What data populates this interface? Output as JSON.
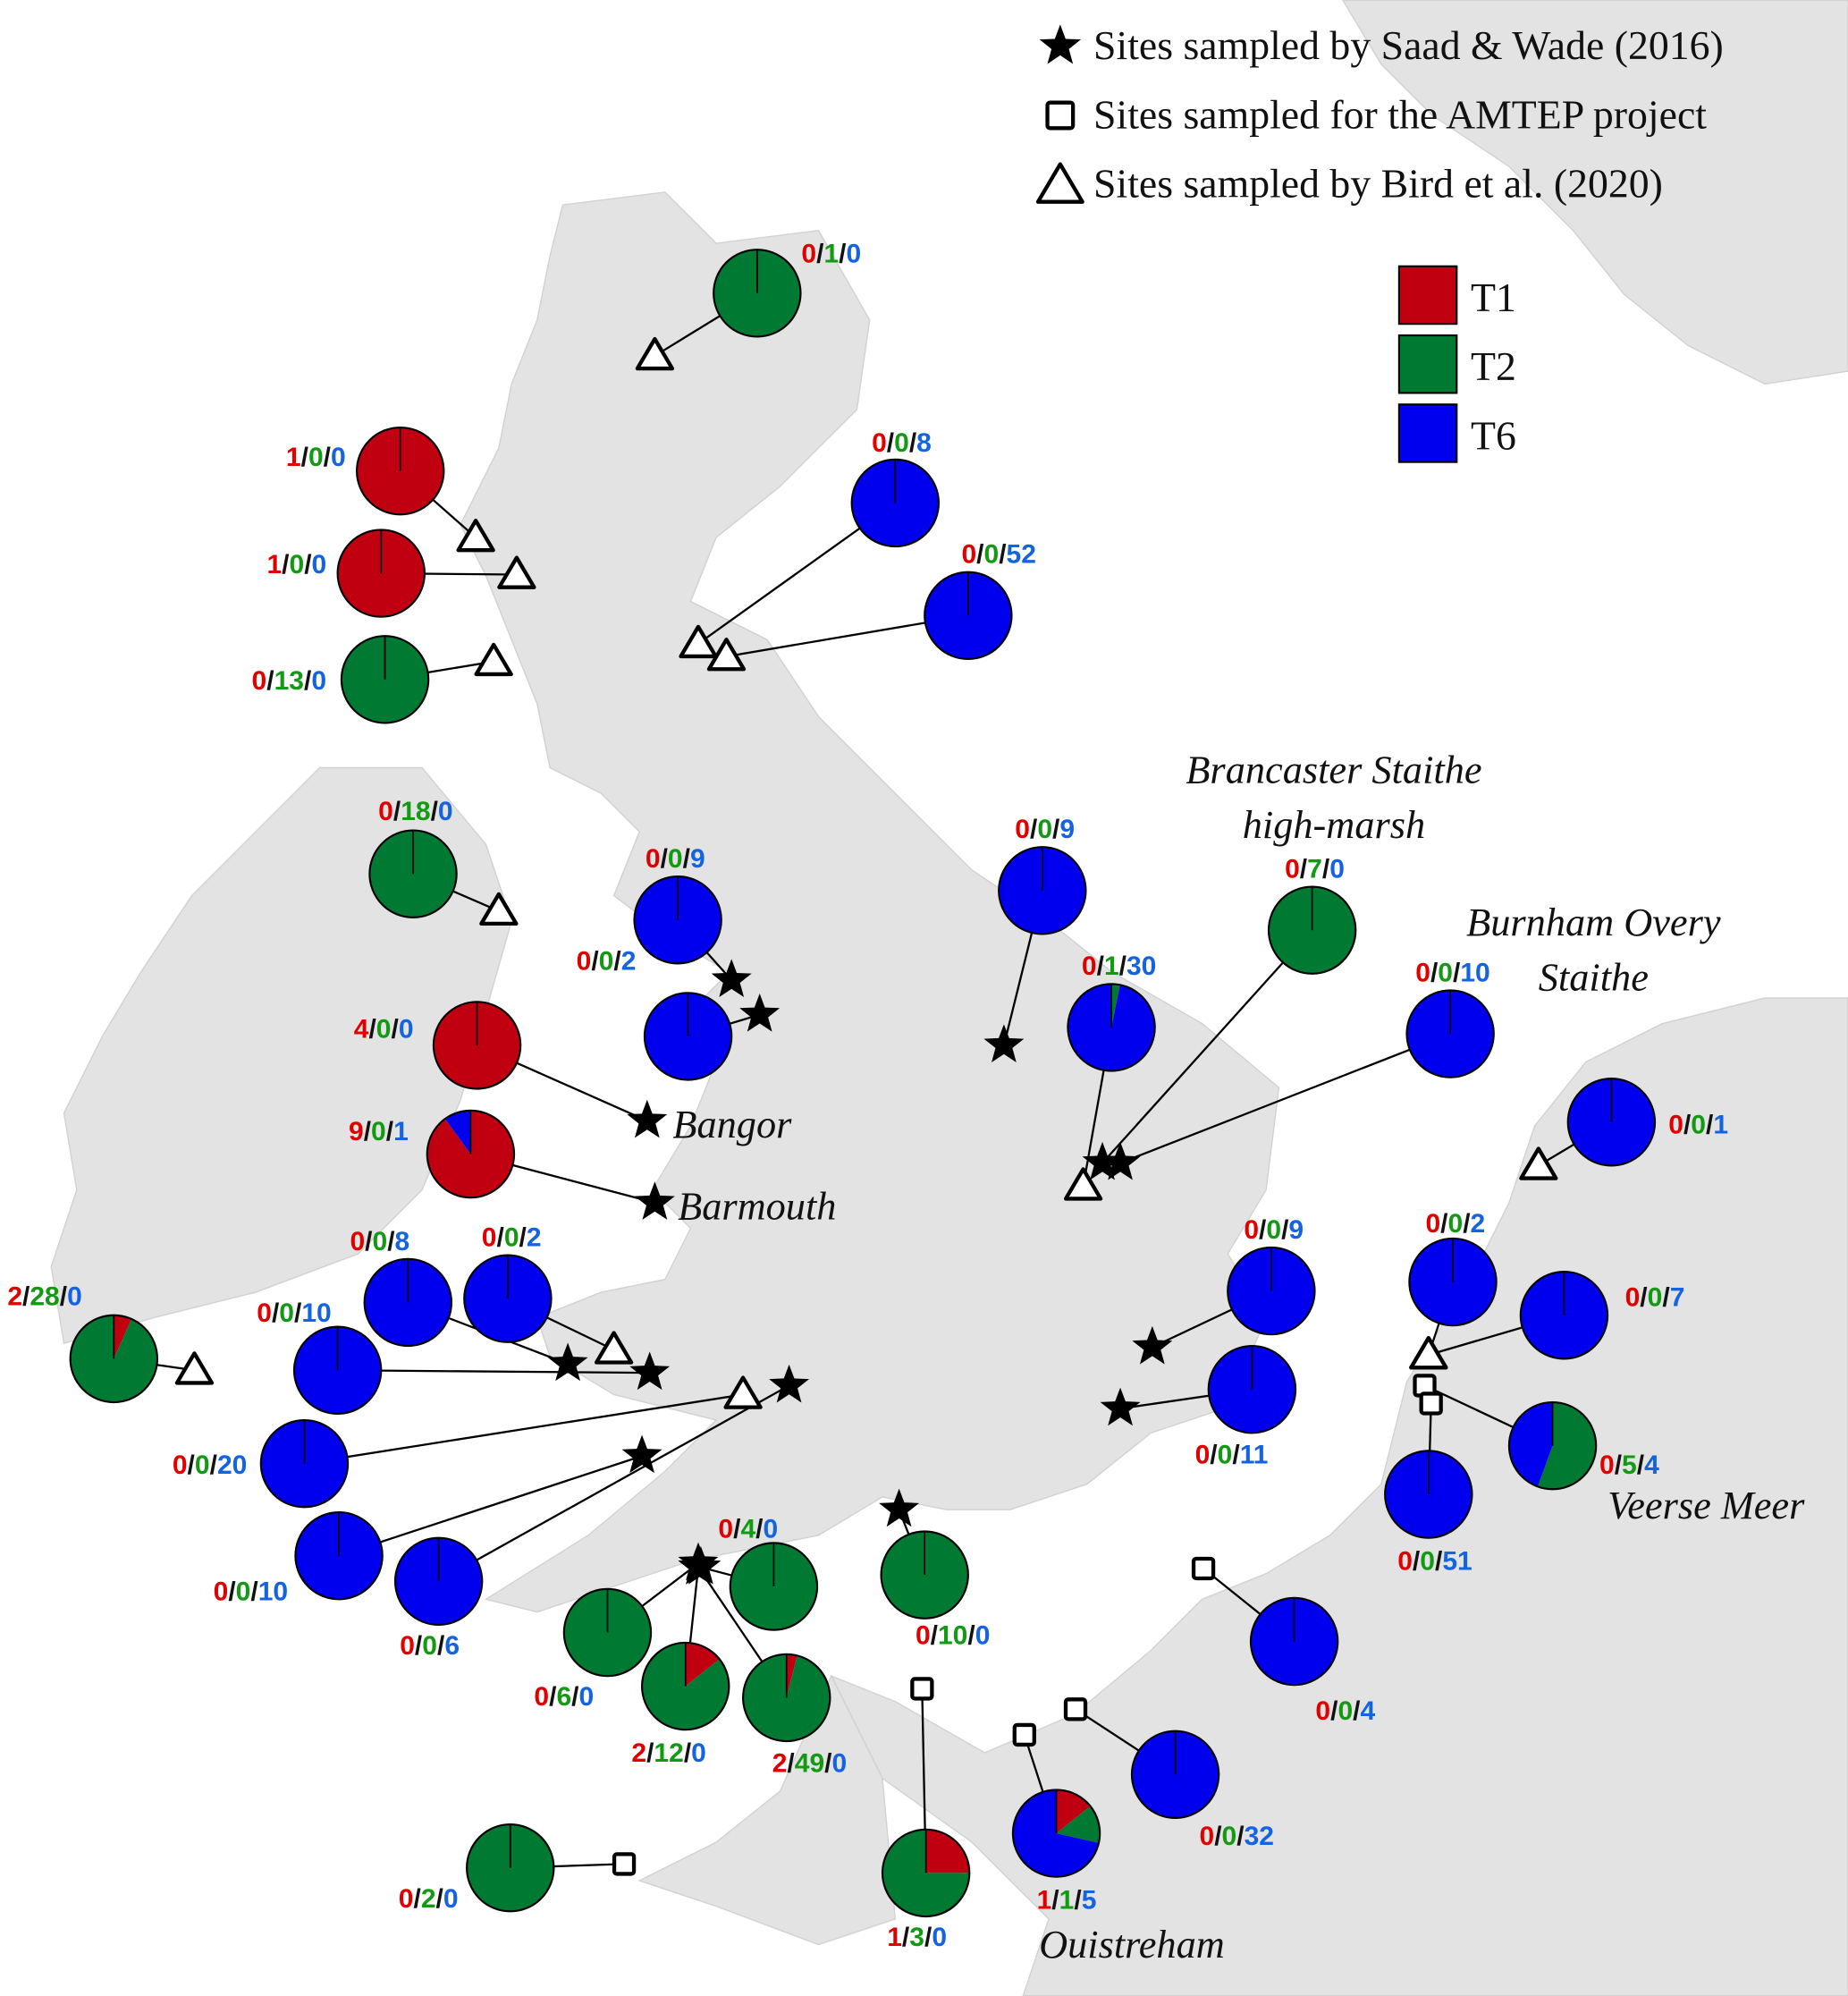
{
  "legend": {
    "markers": [
      {
        "symbol": "star",
        "label": "Sites sampled by Saad & Wade (2016)"
      },
      {
        "symbol": "square",
        "label": "Sites sampled for the AMTEP project"
      },
      {
        "symbol": "triangle",
        "label": "Sites sampled by Bird et al. (2020)"
      }
    ],
    "types": [
      {
        "label": "T1",
        "color": "#c00010"
      },
      {
        "label": "T2",
        "color": "#007a33"
      },
      {
        "label": "T6",
        "color": "#0000ee"
      }
    ]
  },
  "label_colors": {
    "T1": "#e00000",
    "T2": "#139a13",
    "T6": "#1463e0"
  },
  "place_names": [
    "Brancaster Staithe",
    "high-marsh",
    "Burnham Overy",
    "Staithe",
    "Bangor",
    "Barmouth",
    "Veerse Meer",
    "Ouistreham"
  ],
  "sites": [
    {
      "counts": [
        0,
        1,
        0
      ],
      "marker": "triangle"
    },
    {
      "counts": [
        1,
        0,
        0
      ],
      "marker": "triangle"
    },
    {
      "counts": [
        1,
        0,
        0
      ],
      "marker": "triangle"
    },
    {
      "counts": [
        0,
        13,
        0
      ],
      "marker": "triangle"
    },
    {
      "counts": [
        0,
        0,
        8
      ],
      "marker": "triangle"
    },
    {
      "counts": [
        0,
        0,
        52
      ],
      "marker": "triangle"
    },
    {
      "counts": [
        0,
        18,
        0
      ],
      "marker": "triangle"
    },
    {
      "counts": [
        0,
        0,
        9
      ],
      "marker": "star"
    },
    {
      "counts": [
        0,
        0,
        2
      ],
      "marker": "star"
    },
    {
      "counts": [
        4,
        0,
        0
      ],
      "marker": "star"
    },
    {
      "counts": [
        9,
        0,
        1
      ],
      "marker": "star"
    },
    {
      "counts": [
        0,
        0,
        9
      ],
      "marker": "star"
    },
    {
      "counts": [
        0,
        1,
        30
      ],
      "marker": "triangle"
    },
    {
      "counts": [
        0,
        7,
        0
      ],
      "marker": "star"
    },
    {
      "counts": [
        0,
        0,
        10
      ],
      "marker": "star"
    },
    {
      "counts": [
        0,
        0,
        1
      ],
      "marker": "triangle"
    },
    {
      "counts": [
        2,
        28,
        0
      ],
      "marker": "triangle"
    },
    {
      "counts": [
        0,
        0,
        8
      ],
      "marker": "star"
    },
    {
      "counts": [
        0,
        0,
        2
      ],
      "marker": "triangle"
    },
    {
      "counts": [
        0,
        0,
        10
      ],
      "marker": "star"
    },
    {
      "counts": [
        0,
        0,
        20
      ],
      "marker": "triangle"
    },
    {
      "counts": [
        0,
        0,
        10
      ],
      "marker": "star"
    },
    {
      "counts": [
        0,
        0,
        6
      ],
      "marker": "star"
    },
    {
      "counts": [
        0,
        4,
        0
      ],
      "marker": "star"
    },
    {
      "counts": [
        0,
        6,
        0
      ],
      "marker": "star"
    },
    {
      "counts": [
        2,
        12,
        0
      ],
      "marker": "star"
    },
    {
      "counts": [
        2,
        49,
        0
      ],
      "marker": "star"
    },
    {
      "counts": [
        0,
        10,
        0
      ],
      "marker": "star"
    },
    {
      "counts": [
        0,
        0,
        9
      ],
      "marker": "star"
    },
    {
      "counts": [
        0,
        0,
        11
      ],
      "marker": "star"
    },
    {
      "counts": [
        0,
        0,
        2
      ],
      "marker": "triangle"
    },
    {
      "counts": [
        0,
        0,
        7
      ],
      "marker": "triangle"
    },
    {
      "counts": [
        0,
        5,
        4
      ],
      "marker": "square"
    },
    {
      "counts": [
        0,
        0,
        51
      ],
      "marker": "square"
    },
    {
      "counts": [
        0,
        0,
        4
      ],
      "marker": "square"
    },
    {
      "counts": [
        0,
        0,
        32
      ],
      "marker": "square"
    },
    {
      "counts": [
        1,
        1,
        5
      ],
      "marker": "square"
    },
    {
      "counts": [
        1,
        3,
        0
      ],
      "marker": "square"
    },
    {
      "counts": [
        0,
        2,
        0
      ],
      "marker": "square"
    }
  ]
}
